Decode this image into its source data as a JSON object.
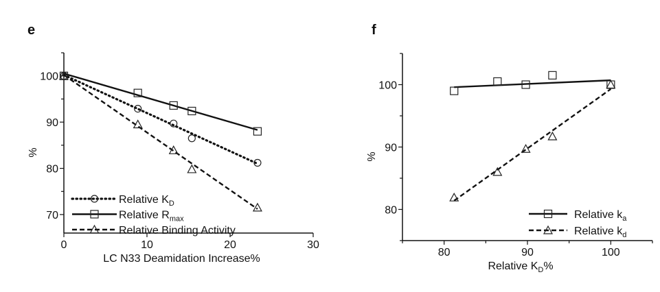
{
  "chart_data": [
    {
      "panel_label": "e",
      "type": "scatter",
      "xlabel": "LC N33 Deamidation Increase%",
      "ylabel": "%",
      "xlim": [
        0,
        30
      ],
      "ylim": [
        66,
        105
      ],
      "xticks": [
        0,
        10,
        20,
        30
      ],
      "yticks": [
        70,
        80,
        90,
        100
      ],
      "grid": false,
      "legend_position": "bottom-left",
      "series": [
        {
          "name": "Relative K",
          "sub": "D",
          "marker": "circle",
          "line": "dotted",
          "x": [
            0,
            8.9,
            13.2,
            15.4,
            23.3
          ],
          "y": [
            100,
            92.9,
            89.7,
            86.5,
            81.2
          ],
          "fit": [
            [
              0,
              100.2
            ],
            [
              23.3,
              81.0
            ]
          ]
        },
        {
          "name": "Relative R",
          "sub": "max",
          "marker": "square",
          "line": "solid",
          "x": [
            0,
            8.9,
            13.2,
            15.4,
            23.3
          ],
          "y": [
            100,
            96.3,
            93.6,
            92.4,
            88.0
          ],
          "fit": [
            [
              0,
              100.5
            ],
            [
              23.3,
              88.3
            ]
          ]
        },
        {
          "name": "Relative Binding Activity",
          "sub": "",
          "marker": "triangle",
          "line": "dashed",
          "x": [
            0,
            8.9,
            13.2,
            15.4,
            23.3
          ],
          "y": [
            100,
            89.5,
            83.9,
            79.8,
            71.5
          ],
          "fit": [
            [
              0,
              100.2
            ],
            [
              23.3,
              71.2
            ]
          ]
        }
      ]
    },
    {
      "panel_label": "f",
      "type": "scatter",
      "xlabel": "Relative K",
      "xlabel_sub": "D",
      "xlabel_suffix": "%",
      "ylabel": "%",
      "xlim": [
        75,
        105
      ],
      "ylim": [
        75,
        105
      ],
      "xticks": [
        80,
        90,
        100
      ],
      "yticks": [
        80,
        90,
        100
      ],
      "grid": false,
      "legend_position": "bottom-right",
      "series": [
        {
          "name": "Relative k",
          "sub": "a",
          "marker": "square",
          "line": "solid",
          "x": [
            81.2,
            86.4,
            89.8,
            93.0,
            100
          ],
          "y": [
            99.0,
            100.5,
            100.0,
            101.5,
            100.0
          ],
          "fit": [
            [
              81.2,
              99.6
            ],
            [
              100,
              100.7
            ]
          ]
        },
        {
          "name": "Relative k",
          "sub": "d",
          "marker": "triangle",
          "line": "dashed",
          "x": [
            81.2,
            86.4,
            89.8,
            93.0,
            100
          ],
          "y": [
            81.9,
            86.0,
            89.7,
            91.7,
            100.0
          ],
          "fit": [
            [
              81.2,
              81.4
            ],
            [
              100,
              99.3
            ]
          ]
        }
      ]
    }
  ]
}
